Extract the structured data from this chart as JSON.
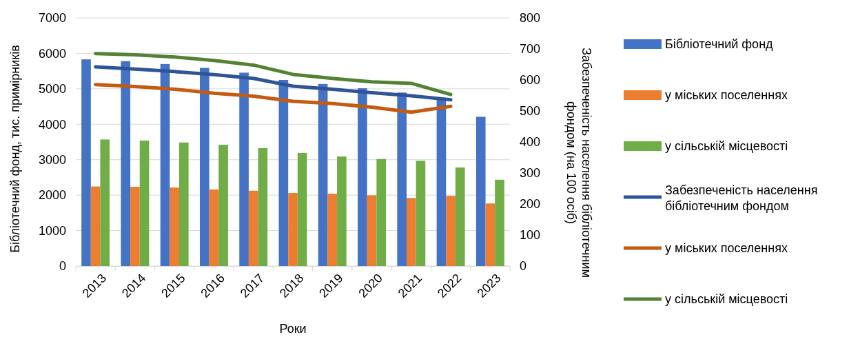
{
  "chart_data": {
    "type": "bar",
    "xlabel": "Роки",
    "ylabel": "Бібліотечний фонд, тис. примірників",
    "y2label": "Забезпеченість населення бібліотечним фондом (на 100 осіб)",
    "categories": [
      "2013",
      "2014",
      "2015",
      "2016",
      "2017",
      "2018",
      "2019",
      "2020",
      "2021",
      "2022",
      "2023"
    ],
    "series": [
      {
        "name": "Бібліотечний фонд",
        "color": "#4472c4",
        "values": [
          5830,
          5780,
          5700,
          5590,
          5455,
          5250,
          5135,
          5015,
          4895,
          4720,
          4210
        ]
      },
      {
        "name": "у міських поселеннях",
        "color": "#ed7d31",
        "values": [
          2245,
          2235,
          2215,
          2160,
          2125,
          2060,
          2040,
          1995,
          1920,
          1980,
          1765
        ]
      },
      {
        "name": "у сільській місцевості",
        "color": "#70ad47",
        "values": [
          3570,
          3540,
          3485,
          3420,
          3325,
          3190,
          3090,
          3020,
          2970,
          2780,
          2435
        ]
      },
      {
        "name": "Забезпеченість населення бібліотечним фондом",
        "type": "line",
        "axis": "y2",
        "color": "#2f5597",
        "values": [
          642,
          635,
          627,
          617,
          605,
          580,
          570,
          559,
          549,
          536,
          null
        ]
      },
      {
        "name": "у міських поселеннях",
        "type": "line",
        "axis": "y2",
        "color": "#c55a11",
        "values": [
          585,
          579,
          570,
          557,
          548,
          531,
          524,
          512,
          496,
          515,
          null
        ]
      },
      {
        "name": "у сільській місцевості",
        "type": "line",
        "axis": "y2",
        "color": "#548235",
        "values": [
          685,
          681,
          674,
          663,
          648,
          618,
          605,
          594,
          589,
          553,
          null
        ]
      }
    ],
    "ylim": [
      0,
      7000
    ],
    "yticks": [
      0,
      1000,
      2000,
      3000,
      4000,
      5000,
      6000,
      7000
    ],
    "y2lim": [
      0,
      800
    ],
    "y2ticks": [
      0,
      100,
      200,
      300,
      400,
      500,
      600,
      700,
      800
    ],
    "grid": "y",
    "legend": "right"
  }
}
